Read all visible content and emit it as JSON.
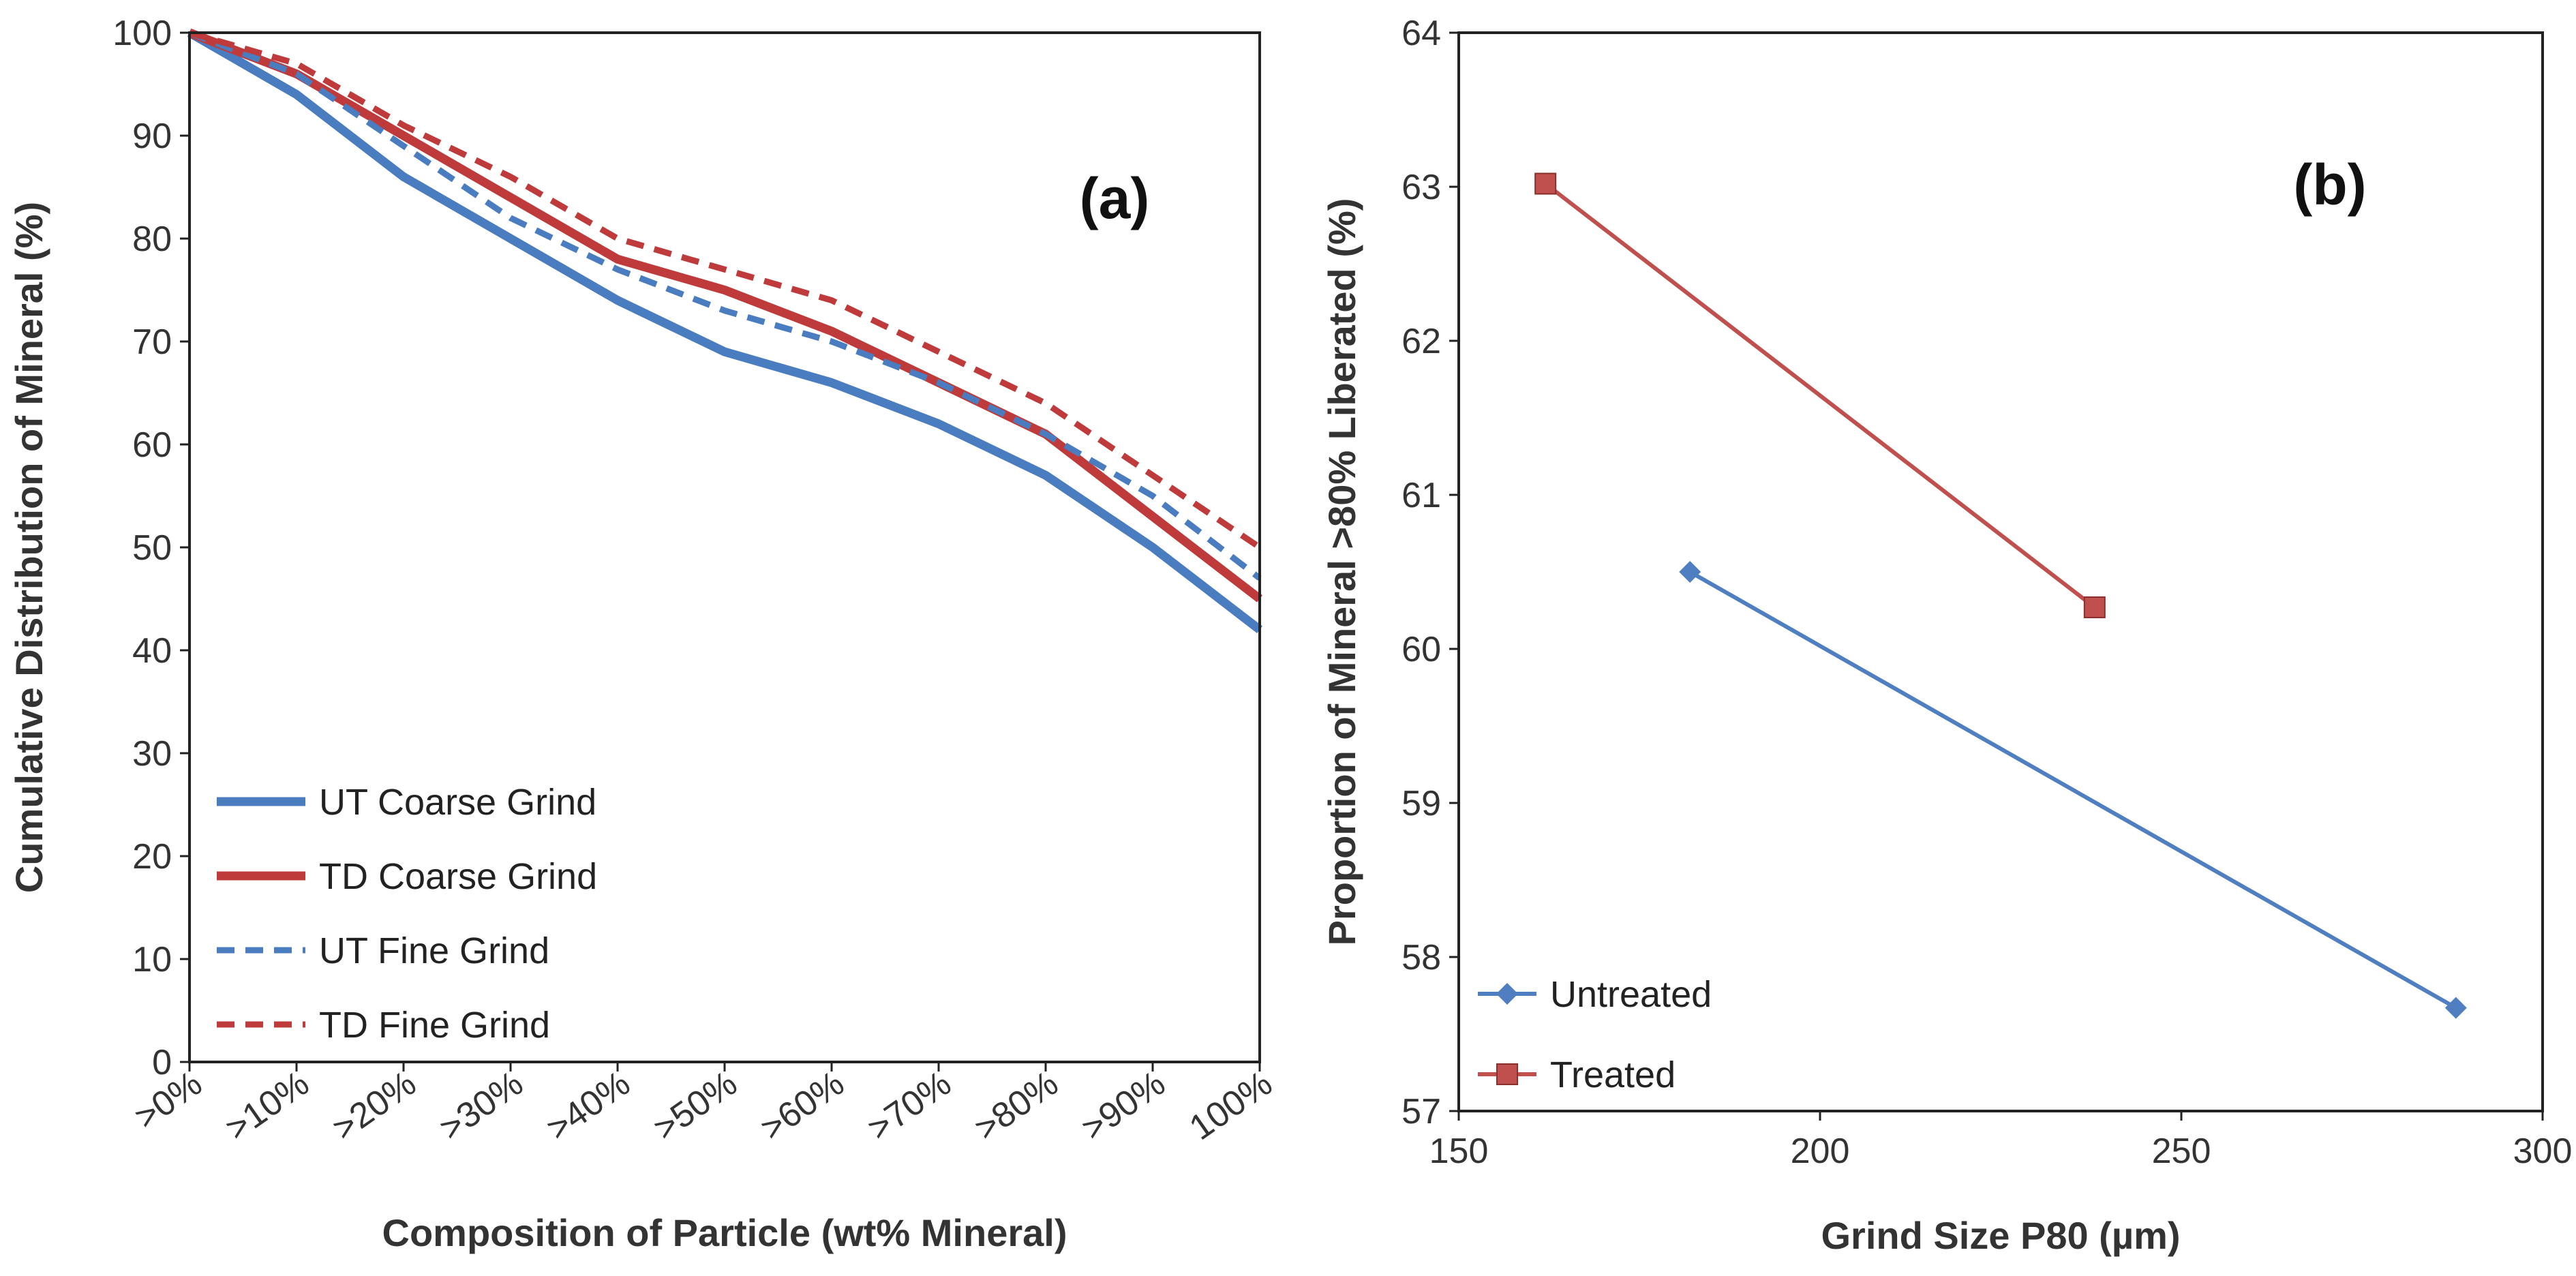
{
  "chart_data": [
    {
      "type": "line",
      "panel_label": "(a)",
      "xlabel": "Composition of Particle (wt% Mineral)",
      "ylabel": "Cumulative Distribution of Mineral (%)",
      "categories": [
        ">0%",
        ">10%",
        ">20%",
        ">30%",
        ">40%",
        ">50%",
        ">60%",
        ">70%",
        ">80%",
        ">90%",
        "100%"
      ],
      "ylim": [
        0,
        100
      ],
      "yticks": [
        0,
        10,
        20,
        30,
        40,
        50,
        60,
        70,
        80,
        90,
        100
      ],
      "legend_position": "bottom-left",
      "series": [
        {
          "name": "UT Coarse Grind",
          "color": "#4a7cc0",
          "style": "solid",
          "values": [
            100,
            94,
            86,
            80,
            74,
            69,
            66,
            62,
            57,
            50,
            42
          ]
        },
        {
          "name": "TD Coarse Grind",
          "color": "#bf3b3b",
          "style": "solid",
          "values": [
            100,
            96,
            90,
            84,
            78,
            75,
            71,
            66,
            61,
            53,
            45
          ]
        },
        {
          "name": "UT Fine Grind",
          "color": "#4a7cc0",
          "style": "dashed",
          "values": [
            100,
            96,
            89,
            82,
            77,
            73,
            70,
            66,
            61,
            55,
            47
          ]
        },
        {
          "name": "TD Fine Grind",
          "color": "#bf3b3b",
          "style": "dashed",
          "values": [
            100,
            97,
            91,
            86,
            80,
            77,
            74,
            69,
            64,
            57,
            50
          ]
        }
      ]
    },
    {
      "type": "line",
      "panel_label": "(b)",
      "xlabel": "Grind Size P80 (µm)",
      "ylabel": "Proportion of Mineral >80% Liberated (%)",
      "xlim": [
        150,
        300
      ],
      "ylim": [
        57,
        64
      ],
      "xticks": [
        150,
        200,
        250,
        300
      ],
      "yticks": [
        57,
        58,
        59,
        60,
        61,
        62,
        63,
        64
      ],
      "legend_position": "bottom-left",
      "series": [
        {
          "name": "Untreated",
          "color": "#4f7fc0",
          "marker": "diamond",
          "points": [
            {
              "x": 182,
              "y": 60.5
            },
            {
              "x": 288,
              "y": 57.67
            }
          ]
        },
        {
          "name": "Treated",
          "color": "#c0504d",
          "marker": "square",
          "points": [
            {
              "x": 162,
              "y": 63.02
            },
            {
              "x": 238,
              "y": 60.27
            }
          ]
        }
      ]
    }
  ]
}
